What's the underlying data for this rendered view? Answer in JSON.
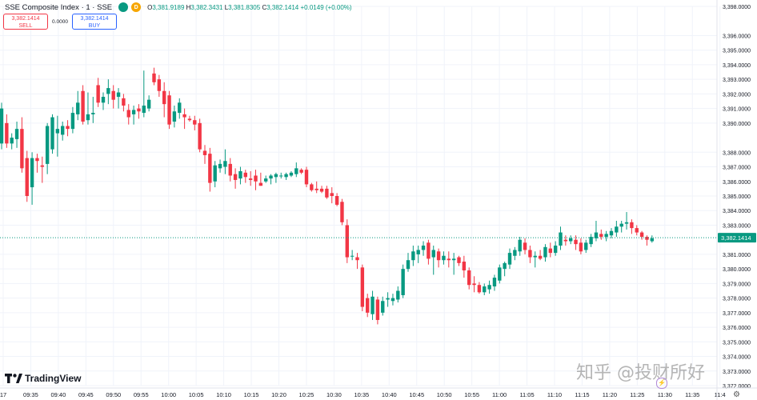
{
  "header": {
    "title": "SSE Composite Index · 1 · SSE",
    "ohlc": {
      "o_label": "O",
      "o": "3,381.9189",
      "h_label": "H",
      "h": "3,382.3431",
      "l_label": "L",
      "l": "3,381.8305",
      "c_label": "C",
      "c": "3,382.1414",
      "change": "+0.0149 (+0.00%)"
    },
    "badge": "D"
  },
  "trade": {
    "sell_price": "3,382.1414",
    "sell_label": "SELL",
    "spread": "0.0000",
    "buy_price": "3,382.1414",
    "buy_label": "BUY"
  },
  "logo": "TradingView",
  "watermark": "知乎 @投财所好",
  "colors": {
    "up": "#089981",
    "down": "#f23645",
    "price_line": "#089981",
    "axis_text": "#131722",
    "grid": "#f0f3fa"
  },
  "chart_data": {
    "type": "candlestick",
    "title": "SSE Composite Index · 1 · SSE",
    "y_axis_side": "right",
    "ylim": [
      3372.0,
      3398.0
    ],
    "y_ticks": [
      "3,398.0000",
      "3,396.0000",
      "3,395.0000",
      "3,394.0000",
      "3,393.0000",
      "3,392.0000",
      "3,391.0000",
      "3,390.0000",
      "3,388.0000",
      "3,387.0000",
      "3,386.0000",
      "3,385.0000",
      "3,384.0000",
      "3,383.0000",
      "3,381.0000",
      "3,380.0000",
      "3,379.0000",
      "3,378.0000",
      "3,377.0000",
      "3,376.0000",
      "3,375.0000",
      "3,374.0000",
      "3,373.0000",
      "3,372.0000"
    ],
    "x_ticks": [
      "17",
      "09:35",
      "09:40",
      "09:45",
      "09:50",
      "09:55",
      "10:00",
      "10:05",
      "10:10",
      "10:15",
      "10:20",
      "10:25",
      "10:30",
      "10:35",
      "10:40",
      "10:45",
      "10:50",
      "10:55",
      "11:00",
      "11:05",
      "11:10",
      "11:15",
      "11:20",
      "11:25",
      "11:30",
      "11:35",
      "11:4"
    ],
    "last_price": 3382.1414,
    "last_price_label": "3,382.1414",
    "grid": true,
    "candles": [
      {
        "o": 3388.6,
        "h": 3391.4,
        "l": 3388.2,
        "c": 3391.0
      },
      {
        "o": 3390.0,
        "h": 3390.6,
        "l": 3388.3,
        "c": 3388.6
      },
      {
        "o": 3388.6,
        "h": 3389.3,
        "l": 3388.2,
        "c": 3389.0
      },
      {
        "o": 3388.9,
        "h": 3390.1,
        "l": 3388.3,
        "c": 3389.6
      },
      {
        "o": 3389.6,
        "h": 3390.4,
        "l": 3386.6,
        "c": 3386.9
      },
      {
        "o": 3387.6,
        "h": 3388.1,
        "l": 3384.6,
        "c": 3385.0
      },
      {
        "o": 3385.6,
        "h": 3388.0,
        "l": 3384.4,
        "c": 3387.6
      },
      {
        "o": 3387.6,
        "h": 3387.9,
        "l": 3386.6,
        "c": 3387.4
      },
      {
        "o": 3387.1,
        "h": 3387.7,
        "l": 3385.9,
        "c": 3387.0
      },
      {
        "o": 3387.2,
        "h": 3390.0,
        "l": 3386.5,
        "c": 3389.8
      },
      {
        "o": 3388.2,
        "h": 3390.6,
        "l": 3387.9,
        "c": 3390.4
      },
      {
        "o": 3389.3,
        "h": 3390.5,
        "l": 3387.7,
        "c": 3389.6
      },
      {
        "o": 3389.2,
        "h": 3390.1,
        "l": 3388.8,
        "c": 3389.8
      },
      {
        "o": 3389.8,
        "h": 3390.2,
        "l": 3389.1,
        "c": 3389.6
      },
      {
        "o": 3389.6,
        "h": 3391.1,
        "l": 3389.3,
        "c": 3390.7
      },
      {
        "o": 3390.6,
        "h": 3392.2,
        "l": 3390.2,
        "c": 3391.4
      },
      {
        "o": 3392.2,
        "h": 3392.6,
        "l": 3389.9,
        "c": 3390.1
      },
      {
        "o": 3390.2,
        "h": 3392.1,
        "l": 3389.9,
        "c": 3390.6
      },
      {
        "o": 3390.6,
        "h": 3391.8,
        "l": 3390.0,
        "c": 3390.7
      },
      {
        "o": 3392.6,
        "h": 3393.1,
        "l": 3391.1,
        "c": 3391.4
      },
      {
        "o": 3391.4,
        "h": 3392.1,
        "l": 3390.9,
        "c": 3391.8
      },
      {
        "o": 3392.0,
        "h": 3393.0,
        "l": 3391.3,
        "c": 3392.4
      },
      {
        "o": 3392.2,
        "h": 3392.6,
        "l": 3391.0,
        "c": 3391.6
      },
      {
        "o": 3391.8,
        "h": 3392.4,
        "l": 3391.0,
        "c": 3392.1
      },
      {
        "o": 3391.7,
        "h": 3392.0,
        "l": 3390.8,
        "c": 3391.2
      },
      {
        "o": 3390.9,
        "h": 3391.3,
        "l": 3389.9,
        "c": 3390.4
      },
      {
        "o": 3390.6,
        "h": 3391.2,
        "l": 3389.9,
        "c": 3390.9
      },
      {
        "o": 3391.0,
        "h": 3391.3,
        "l": 3390.3,
        "c": 3390.8
      },
      {
        "o": 3390.7,
        "h": 3393.6,
        "l": 3390.4,
        "c": 3391.2
      },
      {
        "o": 3391.0,
        "h": 3391.9,
        "l": 3390.8,
        "c": 3391.6
      },
      {
        "o": 3393.4,
        "h": 3393.8,
        "l": 3392.6,
        "c": 3392.8
      },
      {
        "o": 3393.0,
        "h": 3393.3,
        "l": 3391.8,
        "c": 3392.2
      },
      {
        "o": 3392.2,
        "h": 3392.8,
        "l": 3390.4,
        "c": 3391.3
      },
      {
        "o": 3391.9,
        "h": 3392.2,
        "l": 3389.6,
        "c": 3389.9
      },
      {
        "o": 3390.1,
        "h": 3391.2,
        "l": 3389.7,
        "c": 3390.8
      },
      {
        "o": 3390.7,
        "h": 3391.7,
        "l": 3390.3,
        "c": 3391.4
      },
      {
        "o": 3390.6,
        "h": 3391.0,
        "l": 3389.6,
        "c": 3390.4
      },
      {
        "o": 3390.3,
        "h": 3390.5,
        "l": 3390.1,
        "c": 3390.2
      },
      {
        "o": 3390.2,
        "h": 3390.5,
        "l": 3389.5,
        "c": 3389.9
      },
      {
        "o": 3390.0,
        "h": 3390.3,
        "l": 3388.0,
        "c": 3388.2
      },
      {
        "o": 3388.1,
        "h": 3388.5,
        "l": 3387.2,
        "c": 3387.8
      },
      {
        "o": 3387.9,
        "h": 3388.3,
        "l": 3385.3,
        "c": 3385.9
      },
      {
        "o": 3386.0,
        "h": 3387.4,
        "l": 3385.6,
        "c": 3387.1
      },
      {
        "o": 3386.9,
        "h": 3387.5,
        "l": 3386.6,
        "c": 3387.2
      },
      {
        "o": 3387.0,
        "h": 3388.2,
        "l": 3386.5,
        "c": 3387.4
      },
      {
        "o": 3387.2,
        "h": 3387.6,
        "l": 3386.0,
        "c": 3386.4
      },
      {
        "o": 3386.5,
        "h": 3386.9,
        "l": 3385.5,
        "c": 3386.1
      },
      {
        "o": 3386.2,
        "h": 3387.0,
        "l": 3385.8,
        "c": 3386.7
      },
      {
        "o": 3386.6,
        "h": 3386.8,
        "l": 3385.9,
        "c": 3386.3
      },
      {
        "o": 3386.2,
        "h": 3386.7,
        "l": 3385.7,
        "c": 3386.1
      },
      {
        "o": 3386.4,
        "h": 3386.8,
        "l": 3385.4,
        "c": 3386.0
      },
      {
        "o": 3385.9,
        "h": 3386.6,
        "l": 3385.7,
        "c": 3385.7
      },
      {
        "o": 3386.0,
        "h": 3386.4,
        "l": 3385.9,
        "c": 3386.2
      },
      {
        "o": 3386.2,
        "h": 3386.5,
        "l": 3385.8,
        "c": 3386.4
      },
      {
        "o": 3386.3,
        "h": 3386.6,
        "l": 3385.9,
        "c": 3386.5
      },
      {
        "o": 3386.4,
        "h": 3386.6,
        "l": 3386.2,
        "c": 3386.4
      },
      {
        "o": 3386.3,
        "h": 3386.6,
        "l": 3386.1,
        "c": 3386.5
      },
      {
        "o": 3386.4,
        "h": 3386.7,
        "l": 3386.3,
        "c": 3386.6
      },
      {
        "o": 3386.5,
        "h": 3387.3,
        "l": 3386.3,
        "c": 3386.9
      },
      {
        "o": 3386.8,
        "h": 3386.9,
        "l": 3386.5,
        "c": 3386.6
      },
      {
        "o": 3386.8,
        "h": 3387.0,
        "l": 3385.6,
        "c": 3385.8
      },
      {
        "o": 3385.8,
        "h": 3385.9,
        "l": 3385.3,
        "c": 3385.4
      },
      {
        "o": 3385.5,
        "h": 3386.0,
        "l": 3385.2,
        "c": 3385.4
      },
      {
        "o": 3385.5,
        "h": 3385.7,
        "l": 3385.2,
        "c": 3385.3
      },
      {
        "o": 3385.5,
        "h": 3385.7,
        "l": 3384.8,
        "c": 3384.9
      },
      {
        "o": 3385.2,
        "h": 3385.6,
        "l": 3384.5,
        "c": 3385.0
      },
      {
        "o": 3385.0,
        "h": 3385.2,
        "l": 3384.3,
        "c": 3384.4
      },
      {
        "o": 3384.6,
        "h": 3384.8,
        "l": 3383.0,
        "c": 3383.2
      },
      {
        "o": 3383.0,
        "h": 3383.4,
        "l": 3380.4,
        "c": 3380.8
      },
      {
        "o": 3380.9,
        "h": 3381.3,
        "l": 3380.6,
        "c": 3380.9
      },
      {
        "o": 3380.8,
        "h": 3381.1,
        "l": 3380.0,
        "c": 3380.6
      },
      {
        "o": 3380.1,
        "h": 3380.3,
        "l": 3377.1,
        "c": 3377.4
      },
      {
        "o": 3378.0,
        "h": 3378.3,
        "l": 3376.7,
        "c": 3377.0
      },
      {
        "o": 3376.9,
        "h": 3378.5,
        "l": 3376.5,
        "c": 3378.1
      },
      {
        "o": 3377.9,
        "h": 3378.1,
        "l": 3376.2,
        "c": 3376.5
      },
      {
        "o": 3377.0,
        "h": 3378.1,
        "l": 3376.8,
        "c": 3377.8
      },
      {
        "o": 3377.9,
        "h": 3378.4,
        "l": 3377.4,
        "c": 3378.0
      },
      {
        "o": 3377.8,
        "h": 3378.3,
        "l": 3377.5,
        "c": 3378.0
      },
      {
        "o": 3377.9,
        "h": 3378.8,
        "l": 3377.7,
        "c": 3378.5
      },
      {
        "o": 3378.2,
        "h": 3380.3,
        "l": 3378.0,
        "c": 3380.0
      },
      {
        "o": 3380.0,
        "h": 3381.1,
        "l": 3379.8,
        "c": 3380.6
      },
      {
        "o": 3380.6,
        "h": 3381.6,
        "l": 3380.2,
        "c": 3381.2
      },
      {
        "o": 3381.0,
        "h": 3381.6,
        "l": 3380.4,
        "c": 3381.3
      },
      {
        "o": 3381.3,
        "h": 3381.9,
        "l": 3380.9,
        "c": 3381.6
      },
      {
        "o": 3381.8,
        "h": 3382.0,
        "l": 3380.3,
        "c": 3380.7
      },
      {
        "o": 3380.8,
        "h": 3381.6,
        "l": 3379.6,
        "c": 3381.3
      },
      {
        "o": 3381.2,
        "h": 3381.4,
        "l": 3380.1,
        "c": 3380.6
      },
      {
        "o": 3380.6,
        "h": 3381.2,
        "l": 3380.3,
        "c": 3380.9
      },
      {
        "o": 3380.7,
        "h": 3381.2,
        "l": 3380.1,
        "c": 3380.6
      },
      {
        "o": 3380.6,
        "h": 3381.1,
        "l": 3379.6,
        "c": 3380.7
      },
      {
        "o": 3380.8,
        "h": 3380.9,
        "l": 3380.2,
        "c": 3380.4
      },
      {
        "o": 3380.5,
        "h": 3380.9,
        "l": 3379.4,
        "c": 3379.9
      },
      {
        "o": 3379.9,
        "h": 3380.1,
        "l": 3378.6,
        "c": 3378.9
      },
      {
        "o": 3379.0,
        "h": 3379.5,
        "l": 3378.4,
        "c": 3378.9
      },
      {
        "o": 3378.9,
        "h": 3379.1,
        "l": 3378.3,
        "c": 3378.4
      },
      {
        "o": 3378.4,
        "h": 3379.0,
        "l": 3378.2,
        "c": 3378.8
      },
      {
        "o": 3378.6,
        "h": 3379.2,
        "l": 3378.3,
        "c": 3378.9
      },
      {
        "o": 3378.8,
        "h": 3379.6,
        "l": 3378.5,
        "c": 3379.4
      },
      {
        "o": 3379.2,
        "h": 3380.3,
        "l": 3379.0,
        "c": 3380.1
      },
      {
        "o": 3380.0,
        "h": 3380.5,
        "l": 3379.5,
        "c": 3380.4
      },
      {
        "o": 3380.3,
        "h": 3381.4,
        "l": 3380.0,
        "c": 3381.1
      },
      {
        "o": 3380.9,
        "h": 3381.5,
        "l": 3380.6,
        "c": 3381.3
      },
      {
        "o": 3381.2,
        "h": 3382.2,
        "l": 3380.9,
        "c": 3382.0
      },
      {
        "o": 3381.8,
        "h": 3382.1,
        "l": 3381.0,
        "c": 3381.3
      },
      {
        "o": 3381.3,
        "h": 3381.6,
        "l": 3380.4,
        "c": 3380.8
      },
      {
        "o": 3380.8,
        "h": 3381.2,
        "l": 3380.1,
        "c": 3380.9
      },
      {
        "o": 3380.9,
        "h": 3381.3,
        "l": 3380.6,
        "c": 3380.7
      },
      {
        "o": 3380.8,
        "h": 3381.7,
        "l": 3380.5,
        "c": 3381.5
      },
      {
        "o": 3381.4,
        "h": 3381.8,
        "l": 3380.8,
        "c": 3381.1
      },
      {
        "o": 3381.1,
        "h": 3381.9,
        "l": 3380.9,
        "c": 3381.6
      },
      {
        "o": 3381.6,
        "h": 3382.9,
        "l": 3381.3,
        "c": 3382.5
      },
      {
        "o": 3382.0,
        "h": 3382.3,
        "l": 3381.6,
        "c": 3381.9
      },
      {
        "o": 3381.9,
        "h": 3382.3,
        "l": 3381.7,
        "c": 3382.1
      },
      {
        "o": 3382.0,
        "h": 3382.3,
        "l": 3381.3,
        "c": 3381.7
      },
      {
        "o": 3381.8,
        "h": 3382.1,
        "l": 3381.0,
        "c": 3381.2
      },
      {
        "o": 3381.3,
        "h": 3382.0,
        "l": 3381.1,
        "c": 3381.8
      },
      {
        "o": 3381.7,
        "h": 3382.4,
        "l": 3381.5,
        "c": 3382.2
      },
      {
        "o": 3382.1,
        "h": 3383.3,
        "l": 3381.9,
        "c": 3382.5
      },
      {
        "o": 3382.4,
        "h": 3382.7,
        "l": 3382.0,
        "c": 3382.2
      },
      {
        "o": 3382.2,
        "h": 3382.6,
        "l": 3381.9,
        "c": 3382.4
      },
      {
        "o": 3382.3,
        "h": 3382.8,
        "l": 3382.1,
        "c": 3382.6
      },
      {
        "o": 3382.5,
        "h": 3383.3,
        "l": 3382.2,
        "c": 3382.9
      },
      {
        "o": 3382.9,
        "h": 3383.3,
        "l": 3382.5,
        "c": 3383.1
      },
      {
        "o": 3383.1,
        "h": 3383.9,
        "l": 3382.7,
        "c": 3383.2
      },
      {
        "o": 3383.2,
        "h": 3383.4,
        "l": 3382.4,
        "c": 3382.8
      },
      {
        "o": 3382.8,
        "h": 3383.0,
        "l": 3382.3,
        "c": 3382.5
      },
      {
        "o": 3382.5,
        "h": 3382.6,
        "l": 3382.0,
        "c": 3382.2
      },
      {
        "o": 3382.2,
        "h": 3382.3,
        "l": 3381.6,
        "c": 3382.0
      },
      {
        "o": 3381.9,
        "h": 3382.3,
        "l": 3381.8,
        "c": 3382.1
      }
    ]
  }
}
